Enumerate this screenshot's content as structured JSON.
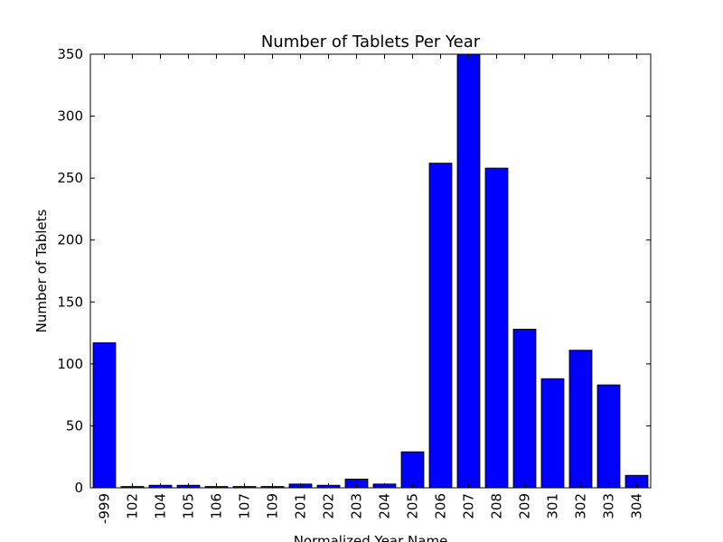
{
  "chart_data": {
    "type": "bar",
    "title": "Number of Tablets Per Year",
    "xlabel": "Normalized Year Name",
    "ylabel": "Number of Tablets",
    "categories": [
      "-999",
      "102",
      "104",
      "105",
      "106",
      "107",
      "109",
      "201",
      "202",
      "203",
      "204",
      "205",
      "206",
      "207",
      "208",
      "209",
      "301",
      "302",
      "303",
      "304"
    ],
    "values": [
      117,
      1,
      2,
      2,
      1,
      1,
      1,
      3,
      2,
      7,
      3,
      29,
      262,
      350,
      258,
      128,
      88,
      111,
      83,
      10
    ],
    "ylim": [
      0,
      350
    ],
    "yticks": [
      0,
      50,
      100,
      150,
      200,
      250,
      300,
      350
    ],
    "bar_color": "#0000ff",
    "edge_color": "#000000",
    "grid": false,
    "legend": "none"
  }
}
